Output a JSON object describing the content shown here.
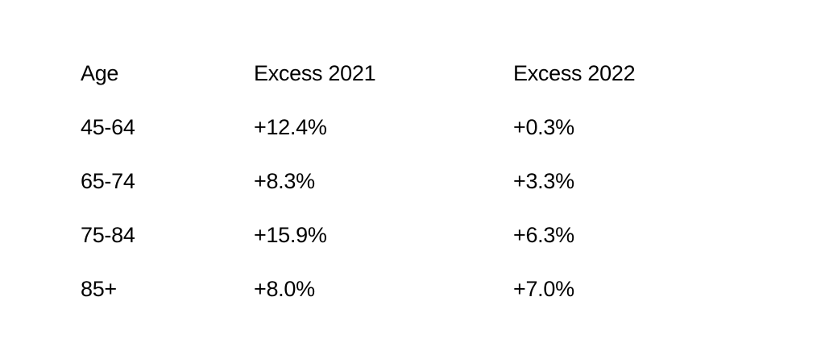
{
  "table": {
    "headers": [
      "Age",
      "Excess 2021",
      "Excess 2022"
    ],
    "rows": [
      [
        "45-64",
        "+12.4%",
        "+0.3%"
      ],
      [
        "65-74",
        "+8.3%",
        "+3.3%"
      ],
      [
        "75-84",
        "+15.9%",
        "+6.3%"
      ],
      [
        "85+",
        "+8.0%",
        "+7.0%"
      ]
    ]
  }
}
